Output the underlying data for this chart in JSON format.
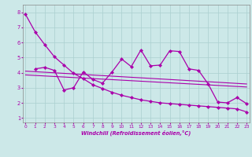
{
  "xlabel": "Windchill (Refroidissement éolien,°C)",
  "bg_color": "#cce8e8",
  "grid_color": "#aacfcf",
  "line_color": "#aa00aa",
  "x_ticks": [
    0,
    1,
    2,
    3,
    4,
    5,
    6,
    7,
    8,
    9,
    10,
    11,
    12,
    13,
    14,
    15,
    16,
    17,
    18,
    19,
    20,
    21,
    22,
    23
  ],
  "y_ticks": [
    1,
    2,
    3,
    4,
    5,
    6,
    7,
    8
  ],
  "ylim": [
    0.7,
    8.5
  ],
  "xlim": [
    -0.3,
    23.3
  ],
  "series1_x": [
    0,
    1,
    2,
    3,
    4,
    5,
    6,
    7,
    8,
    9,
    10,
    11,
    12,
    13,
    14,
    15,
    16,
    17,
    18,
    19,
    20,
    21,
    22,
    23
  ],
  "series1_y": [
    7.85,
    6.7,
    5.85,
    5.05,
    4.5,
    3.95,
    3.6,
    3.2,
    2.95,
    2.7,
    2.5,
    2.35,
    2.2,
    2.1,
    2.0,
    1.95,
    1.9,
    1.85,
    1.8,
    1.75,
    1.7,
    1.65,
    1.6,
    1.4
  ],
  "series2_x": [
    1,
    2,
    3,
    4,
    5,
    6,
    7,
    8,
    9,
    10,
    11,
    12,
    13,
    14,
    15,
    16,
    17,
    18,
    19,
    20,
    21,
    22,
    23
  ],
  "series2_y": [
    4.25,
    4.35,
    4.15,
    2.85,
    3.0,
    4.05,
    3.55,
    3.3,
    4.05,
    4.9,
    4.4,
    5.5,
    4.45,
    4.5,
    5.45,
    5.4,
    4.25,
    4.15,
    3.25,
    2.05,
    2.0,
    2.35,
    1.95
  ],
  "trend1_x": [
    0,
    23
  ],
  "trend1_y": [
    4.1,
    3.25
  ],
  "trend2_x": [
    0,
    23
  ],
  "trend2_y": [
    3.85,
    3.05
  ]
}
